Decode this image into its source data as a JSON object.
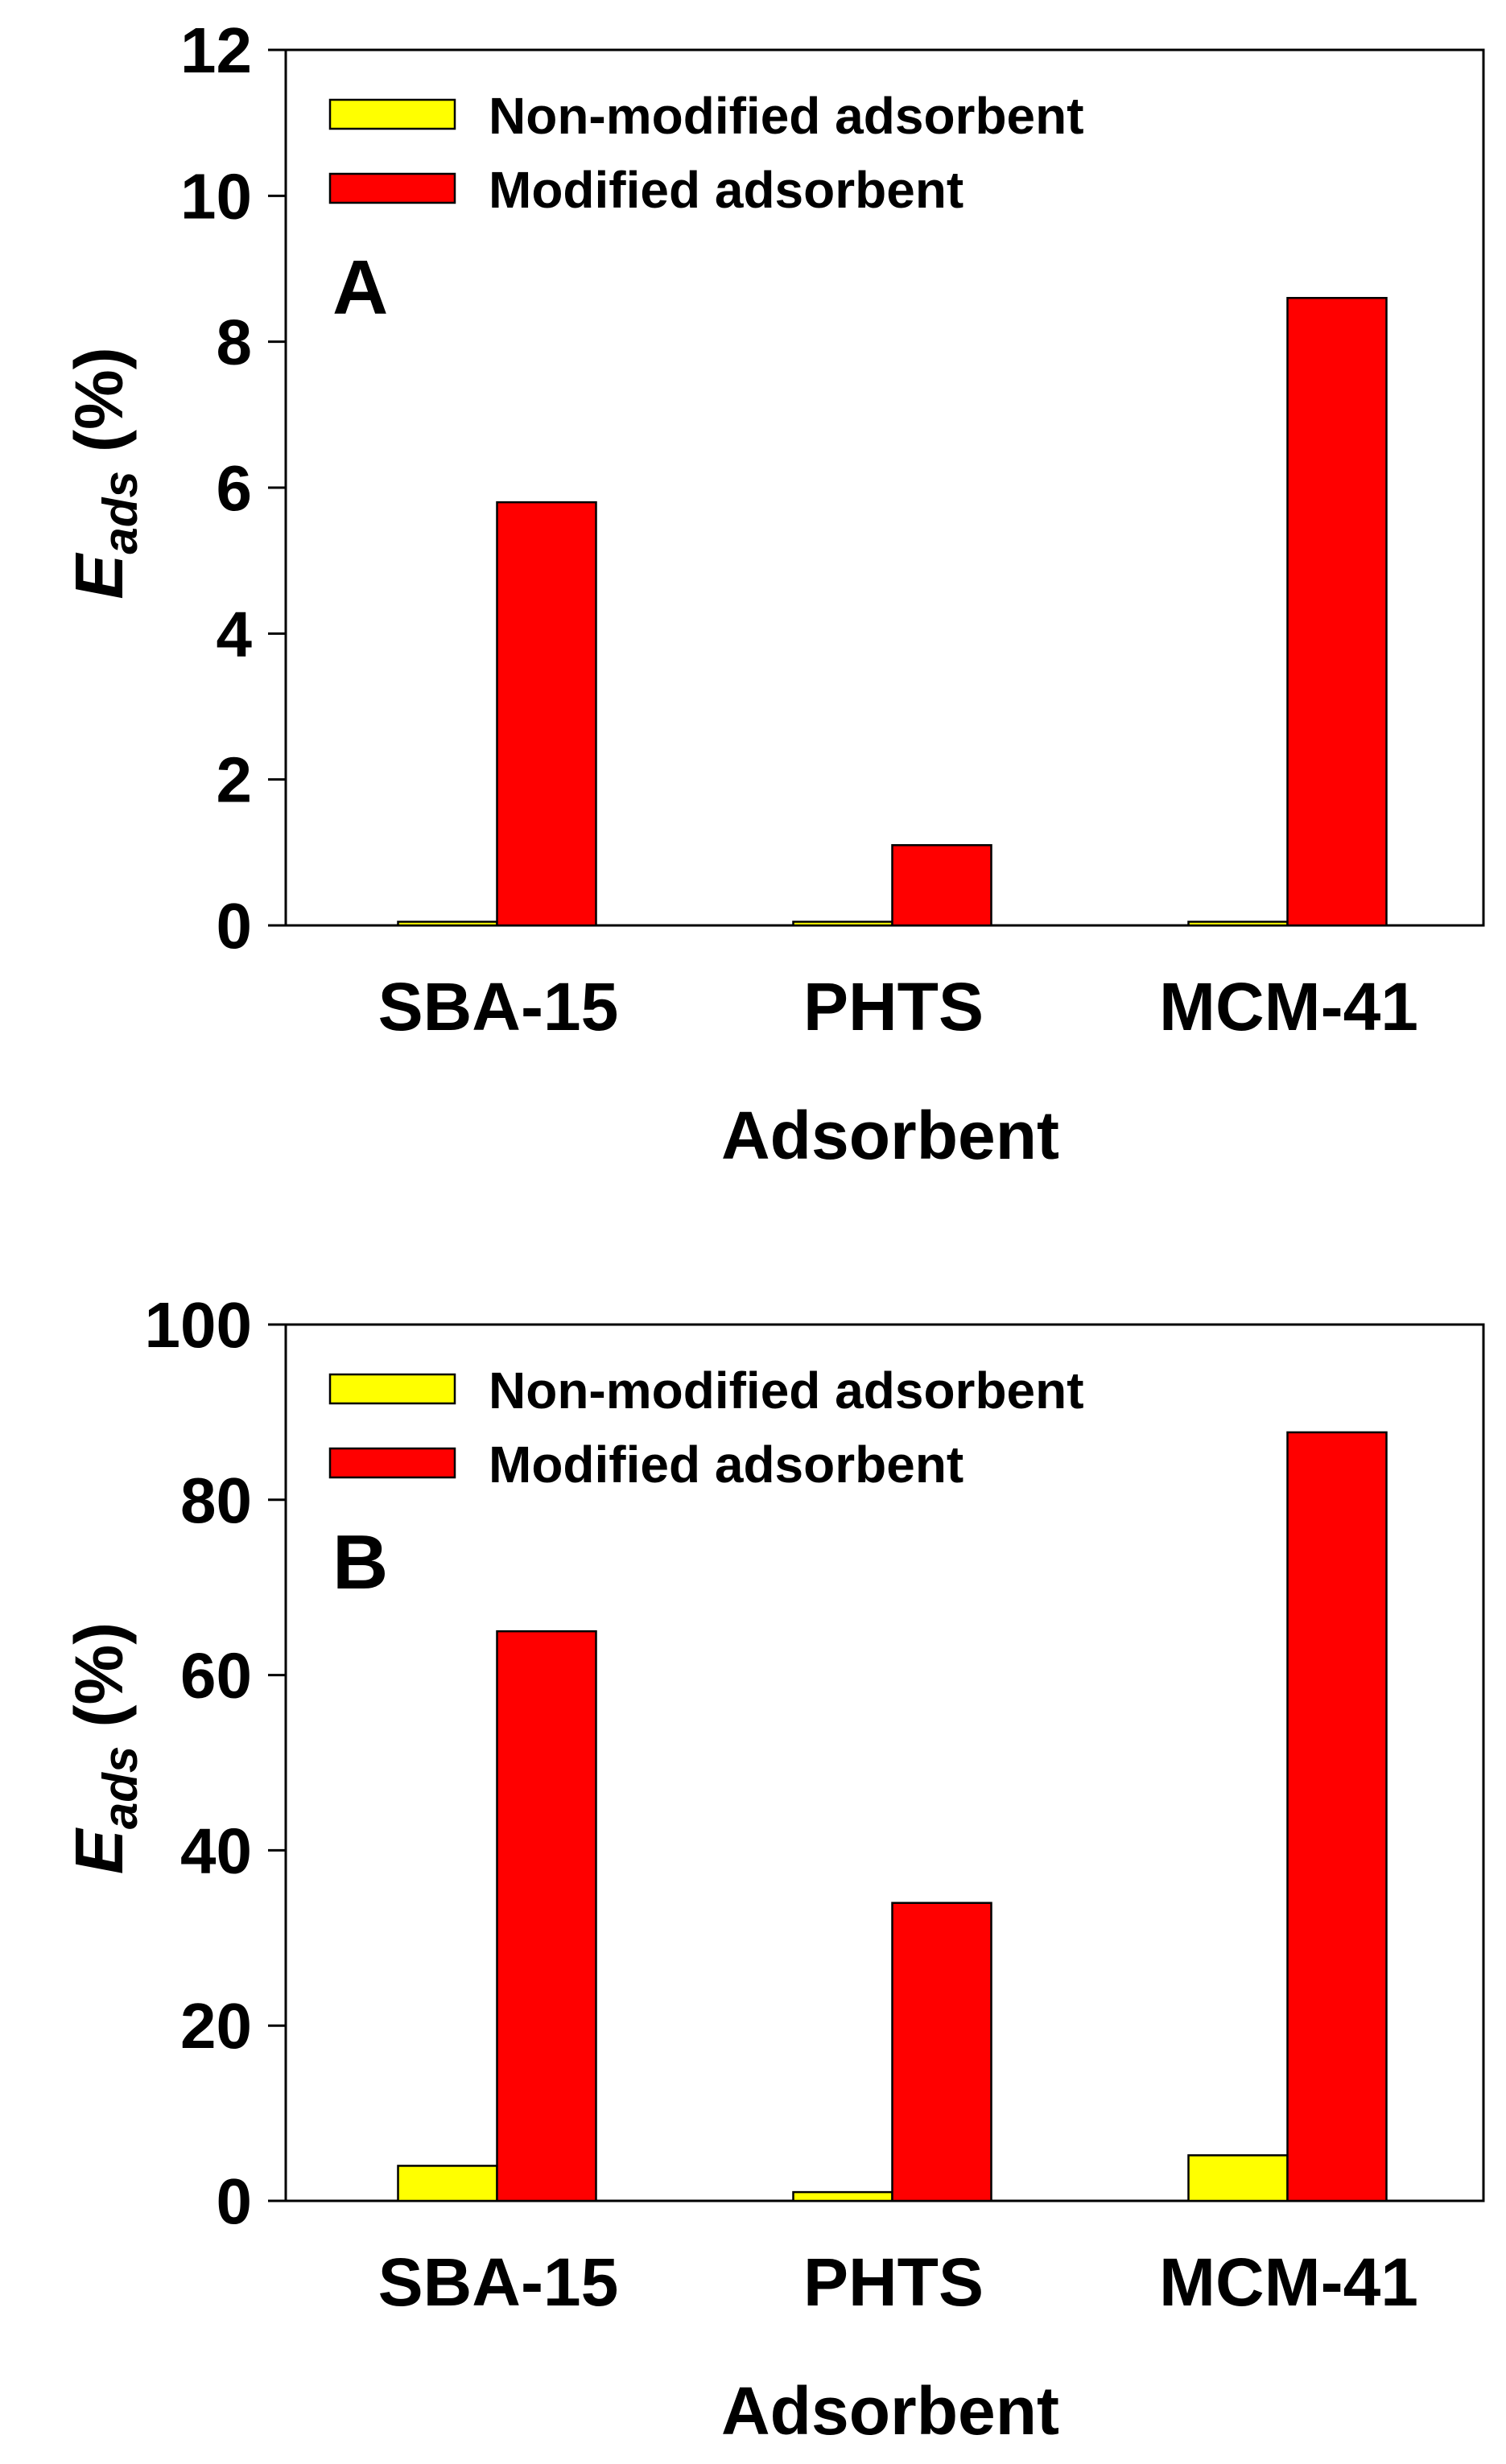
{
  "colors": {
    "non_modified": "#ffff00",
    "modified": "#ff0000",
    "outline": "#000000"
  },
  "chart_data": [
    {
      "type": "bar",
      "panel": "A",
      "categories": [
        "SBA-15",
        "PHTS",
        "MCM-41"
      ],
      "series": [
        {
          "name": "Non-modified adsorbent",
          "values": [
            0.05,
            0.05,
            0.05
          ]
        },
        {
          "name": "Modified adsorbent",
          "values": [
            5.8,
            1.1,
            8.6
          ]
        }
      ],
      "xlabel": "Adsorbent",
      "ylabel": {
        "main": "E",
        "sub": "ads",
        "unit": "(%)"
      },
      "ylim": [
        0,
        12
      ],
      "yticks": [
        0,
        2,
        4,
        6,
        8,
        10,
        12
      ],
      "grid": false,
      "legend": "top-left"
    },
    {
      "type": "bar",
      "panel": "B",
      "categories": [
        "SBA-15",
        "PHTS",
        "MCM-41"
      ],
      "series": [
        {
          "name": "Non-modified adsorbent",
          "values": [
            4,
            1,
            5.2
          ]
        },
        {
          "name": "Modified adsorbent",
          "values": [
            65,
            34,
            87.7
          ]
        }
      ],
      "xlabel": "Adsorbent",
      "ylabel": {
        "main": "E",
        "sub": "ads",
        "unit": "(%)"
      },
      "ylim": [
        0,
        100
      ],
      "yticks": [
        0,
        20,
        40,
        60,
        80,
        100
      ],
      "grid": false,
      "legend": "top-left"
    }
  ]
}
